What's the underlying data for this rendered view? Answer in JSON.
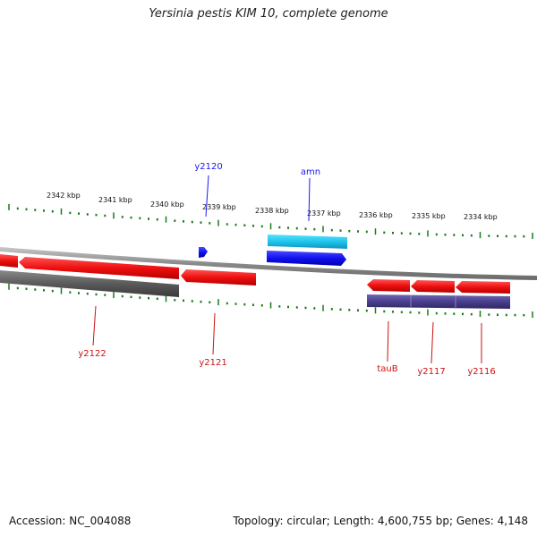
{
  "title": "Yersinia pestis KIM 10, complete genome",
  "footer": {
    "accession": "Accession: NC_004088",
    "topology": "Topology: circular; Length: 4,600,755 bp; Genes: 4,148"
  },
  "colors": {
    "forward_strand_gene": "#1a1aee",
    "forward_strand_secondary": "#22ccee",
    "reverse_strand_gene": "#ee1111",
    "reverse_strand_secondary": "#555555",
    "reverse_strand_tertiary": "#4a3f8c",
    "tick": "#1a7a1a",
    "backbone": "#999999"
  },
  "scale_labels": [
    "2342 kbp",
    "2341 kbp",
    "2340 kbp",
    "2339 kbp",
    "2338 kbp",
    "2337 kbp",
    "2336 kbp",
    "2335 kbp",
    "2334 kbp"
  ],
  "genes": {
    "forward": [
      {
        "label": "y2120"
      },
      {
        "label": "amn"
      }
    ],
    "reverse": [
      {
        "label": "y2122"
      },
      {
        "label": "y2121"
      },
      {
        "label": "tauB"
      },
      {
        "label": "y2117"
      },
      {
        "label": "y2116"
      }
    ]
  }
}
